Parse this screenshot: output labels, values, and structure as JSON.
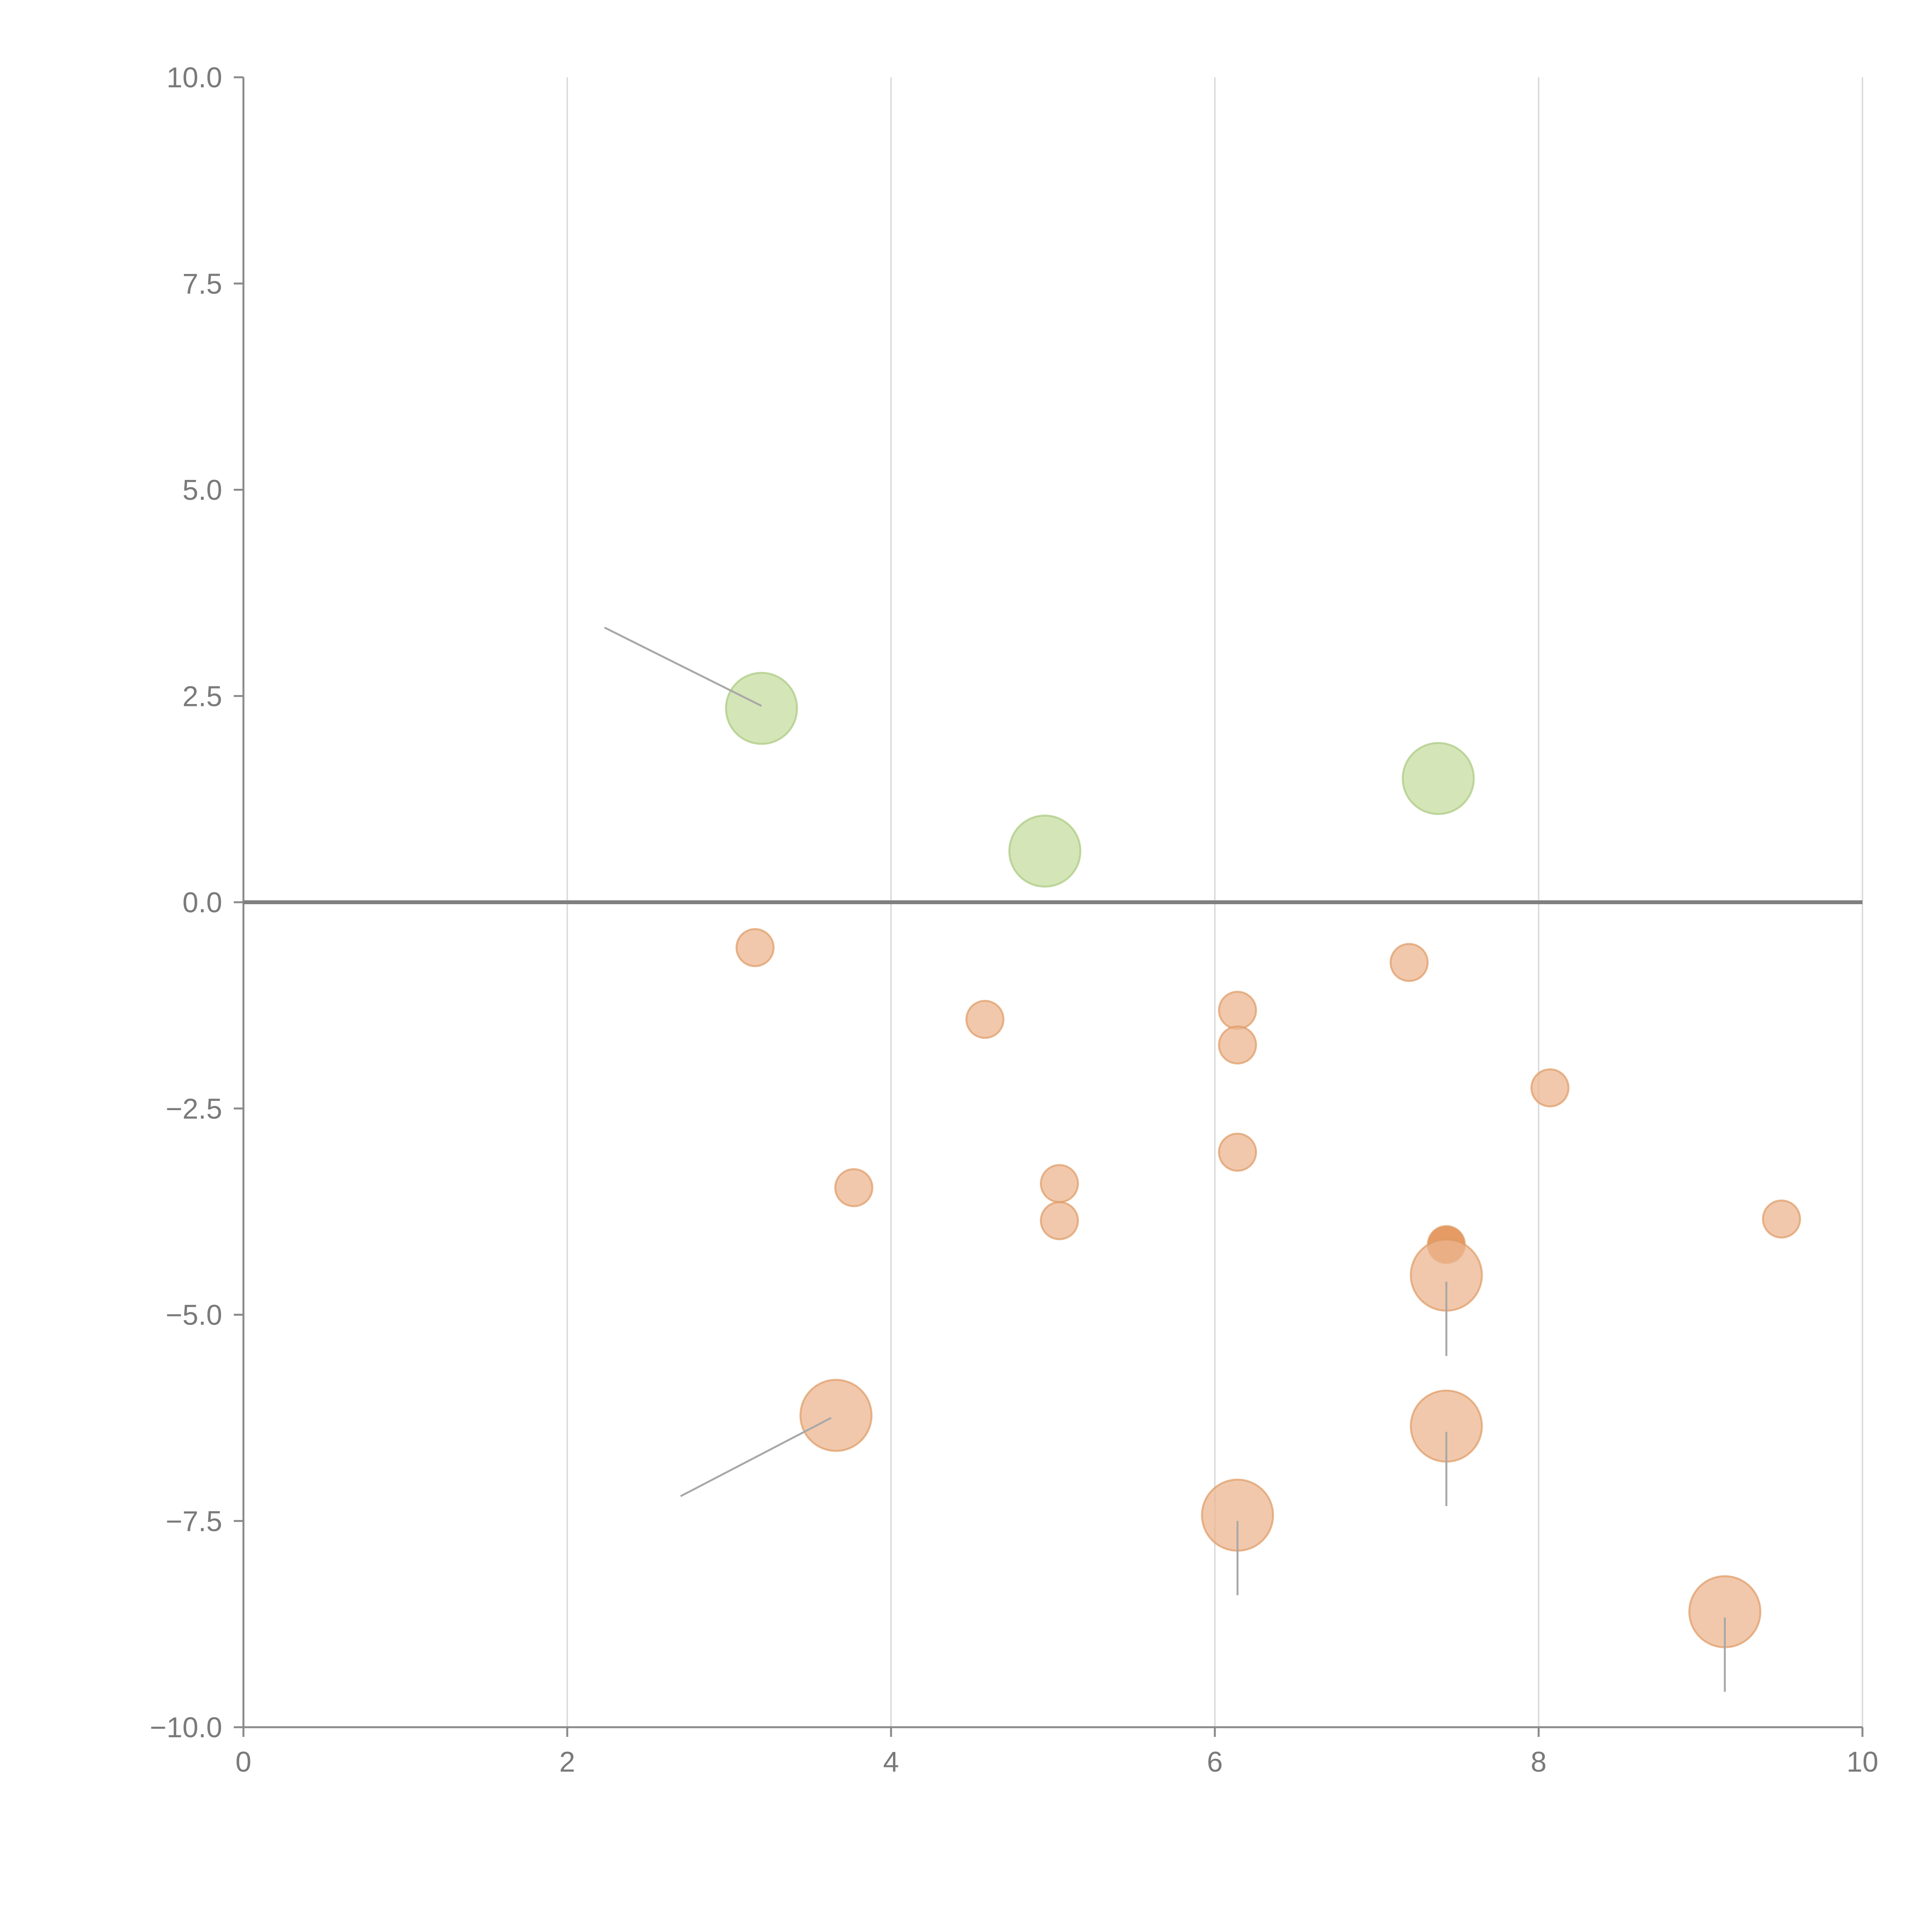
{
  "chart_data": {
    "type": "scatter",
    "title": "",
    "xlabel": "",
    "ylabel": "",
    "xlim": [
      0,
      10
    ],
    "ylim": [
      -10,
      10
    ],
    "x_ticks": [
      0,
      2,
      4,
      6,
      8,
      10
    ],
    "x_tick_labels": [
      "0",
      "2",
      "4",
      "6",
      "8",
      "10"
    ],
    "y_ticks": [
      10,
      7.5,
      5,
      2.5,
      0,
      -2.5,
      -5,
      -7.5,
      -10
    ],
    "y_tick_labels": [
      "10.0",
      "7.5",
      "5.0",
      "2.5",
      "0.0",
      "−2.5",
      "−5.0",
      "−7.5",
      "−10.0"
    ],
    "grid": "vertical",
    "reference_line_y": 0,
    "colors": {
      "positive_fill": "#c5dca0",
      "positive_stroke": "#a9c97f",
      "negative_fill": "#ecb690",
      "negative_stroke": "#de9a64",
      "highlight_fill": "#e08a48"
    },
    "series": [
      {
        "name": "positive",
        "color": "#c5dca0",
        "points": [
          {
            "x": 3.2,
            "y": 2.35,
            "size": 3
          },
          {
            "x": 4.95,
            "y": 0.62,
            "size": 3
          },
          {
            "x": 7.38,
            "y": 1.5,
            "size": 3
          }
        ]
      },
      {
        "name": "negative",
        "color": "#ecb690",
        "points": [
          {
            "x": 3.16,
            "y": -0.55,
            "size": 1
          },
          {
            "x": 4.58,
            "y": -1.42,
            "size": 1
          },
          {
            "x": 6.14,
            "y": -1.31,
            "size": 1
          },
          {
            "x": 6.14,
            "y": -1.73,
            "size": 1
          },
          {
            "x": 7.2,
            "y": -0.73,
            "size": 1
          },
          {
            "x": 8.07,
            "y": -2.25,
            "size": 1
          },
          {
            "x": 6.14,
            "y": -3.03,
            "size": 1
          },
          {
            "x": 3.77,
            "y": -3.46,
            "size": 1
          },
          {
            "x": 5.04,
            "y": -3.41,
            "size": 1
          },
          {
            "x": 5.04,
            "y": -3.86,
            "size": 1
          },
          {
            "x": 9.5,
            "y": -3.84,
            "size": 1
          },
          {
            "x": 7.43,
            "y": -4.15,
            "size": 1,
            "highlight": true
          },
          {
            "x": 7.43,
            "y": -4.52,
            "size": 3
          },
          {
            "x": 3.66,
            "y": -6.22,
            "size": 3
          },
          {
            "x": 7.43,
            "y": -6.35,
            "size": 3
          },
          {
            "x": 6.14,
            "y": -7.43,
            "size": 3
          },
          {
            "x": 9.15,
            "y": -8.6,
            "size": 3
          }
        ]
      }
    ],
    "annotation_leaders": [
      {
        "x1": 2.23,
        "y1": 3.33,
        "x2": 3.2,
        "y2": 2.38
      },
      {
        "x1": 2.7,
        "y1": -7.2,
        "x2": 3.63,
        "y2": -6.25
      },
      {
        "x1": 7.43,
        "y1": -4.6,
        "x2": 7.43,
        "y2": -5.5
      },
      {
        "x1": 7.43,
        "y1": -6.42,
        "x2": 7.43,
        "y2": -7.32
      },
      {
        "x1": 6.14,
        "y1": -7.5,
        "x2": 6.14,
        "y2": -8.4
      },
      {
        "x1": 9.15,
        "y1": -8.67,
        "x2": 9.15,
        "y2": -9.57
      }
    ]
  }
}
